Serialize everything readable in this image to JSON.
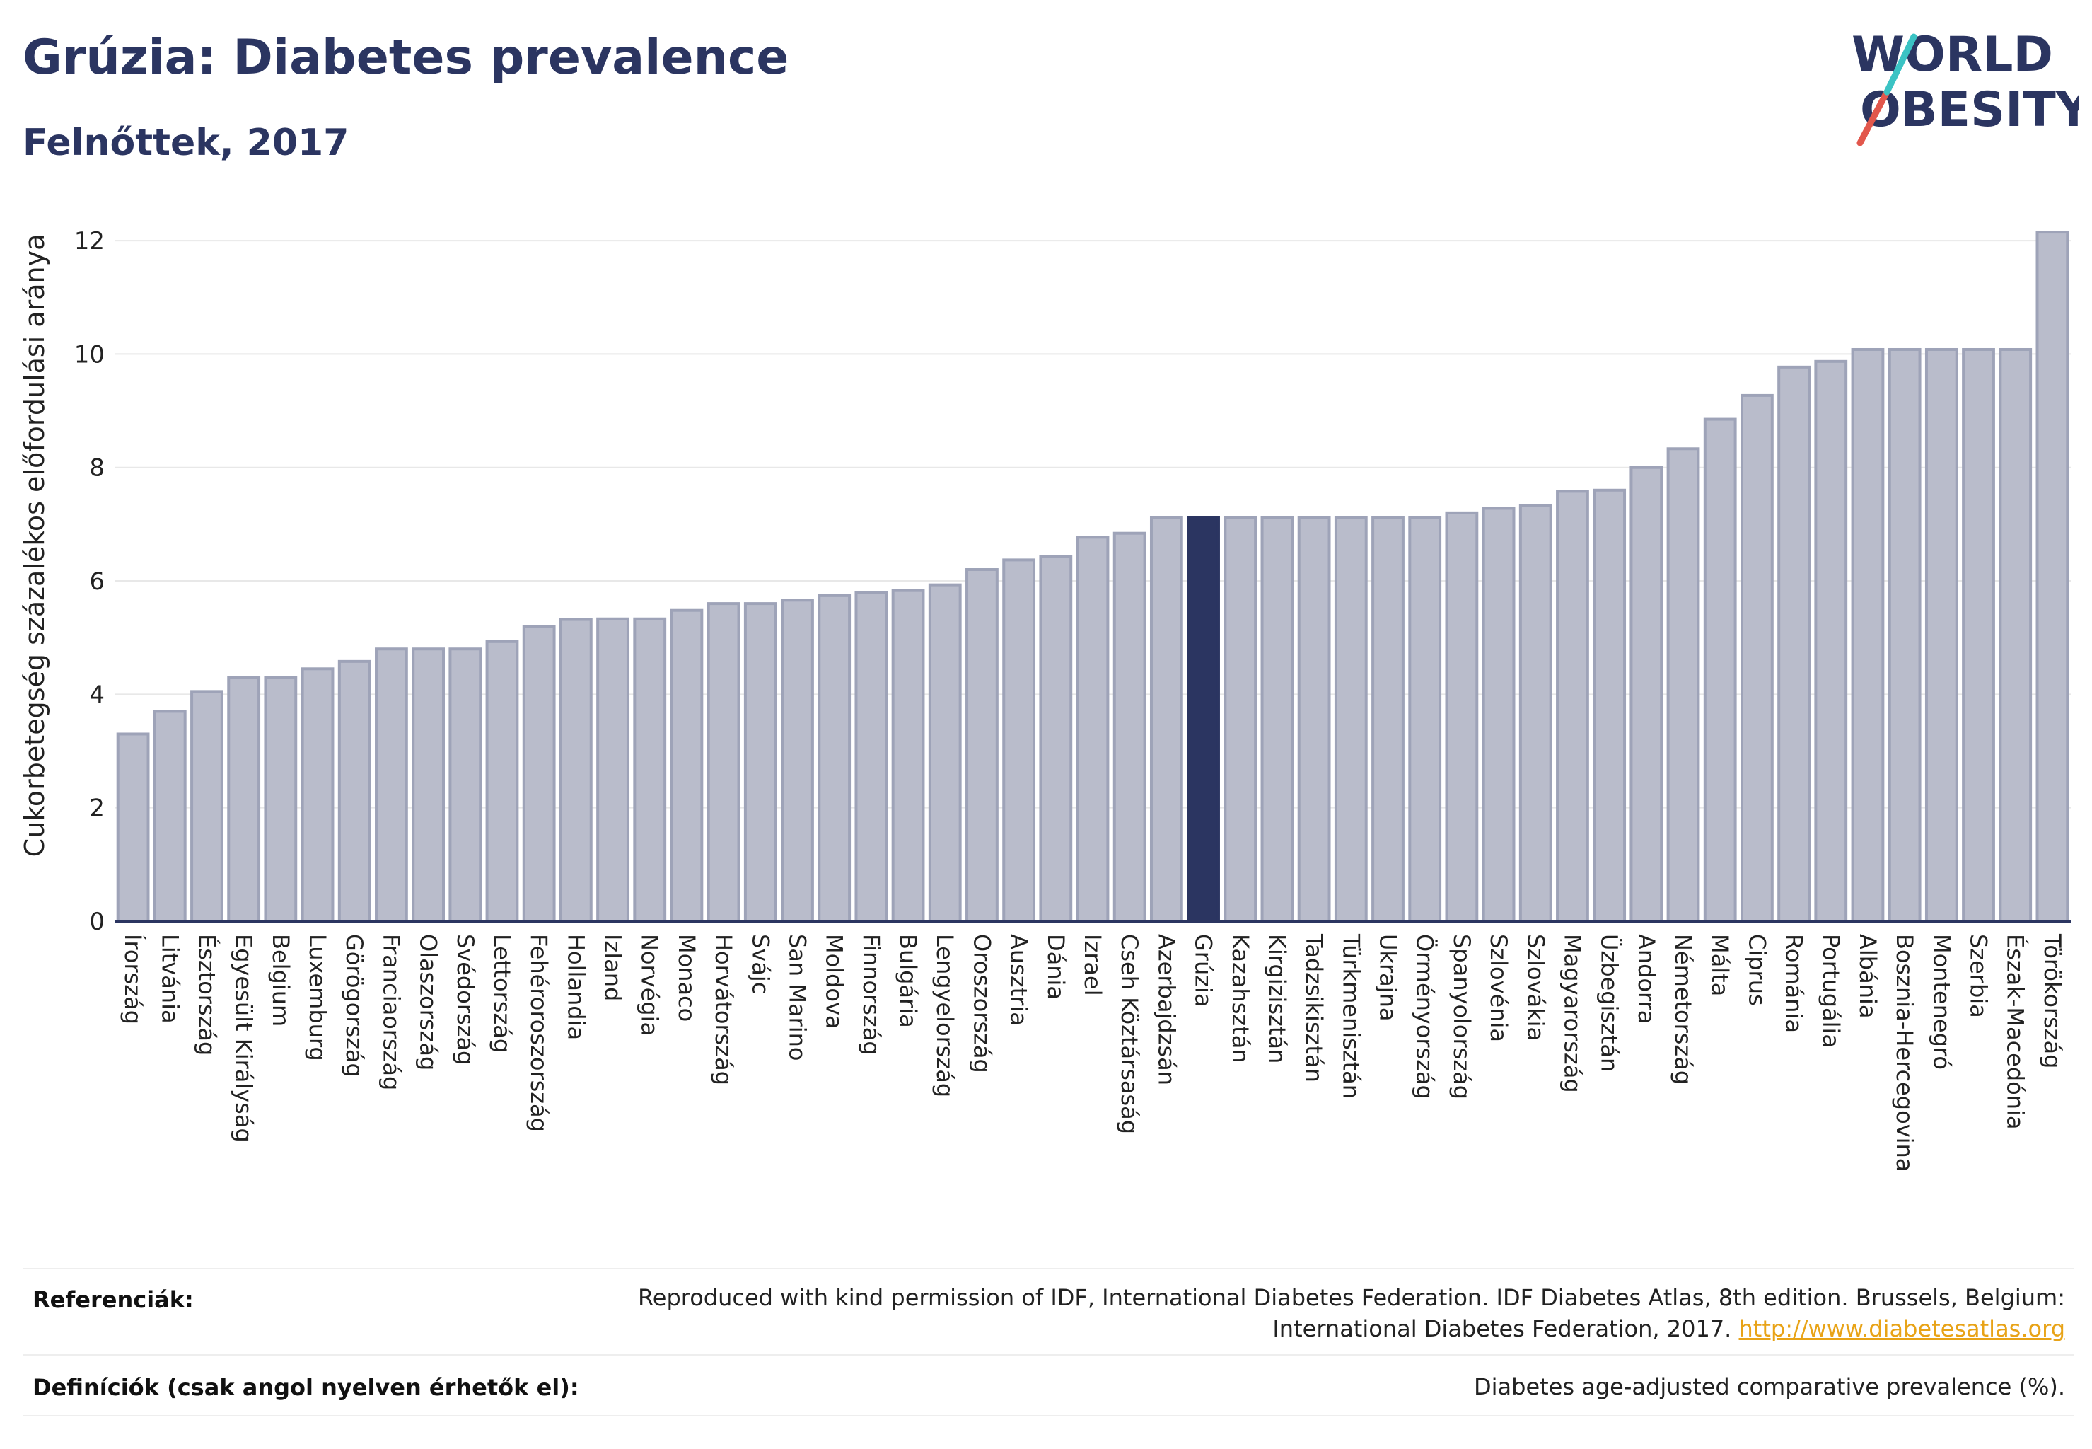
{
  "header": {
    "title": "Grúzia: Diabetes prevalence",
    "subtitle": "Felnőttek, 2017"
  },
  "logo": {
    "line1": "WORLD",
    "line2": "OBESITY",
    "text_color": "#2b3561",
    "slash_colors": [
      "#e2574c",
      "#3bc3c4"
    ]
  },
  "colors": {
    "bar_default": "#b9bccb",
    "bar_border": "#9ea3b8",
    "bar_highlight": "#2b3561",
    "grid": "#e8e8e8",
    "axis": "#2b3561"
  },
  "chart_data": {
    "type": "bar",
    "title": "Grúzia: Diabetes prevalence",
    "subtitle": "Felnőttek, 2017",
    "xlabel": "",
    "ylabel": "Cukorbetegség százalékos előfordulási aránya",
    "ylim": [
      0,
      12.5
    ],
    "yticks": [
      0,
      2,
      4,
      6,
      8,
      10,
      12
    ],
    "grid": true,
    "highlight": "Grúzia",
    "categories": [
      "Írország",
      "Litvánia",
      "Észtország",
      "Egyesült Királyság",
      "Belgium",
      "Luxemburg",
      "Görögország",
      "Franciaország",
      "Olaszország",
      "Svédország",
      "Lettország",
      "Fehéroroszország",
      "Hollandia",
      "Izland",
      "Norvégia",
      "Monaco",
      "Horvátország",
      "Svájc",
      "San Marino",
      "Moldova",
      "Finnország",
      "Bulgária",
      "Lengyelország",
      "Oroszország",
      "Ausztria",
      "Dánia",
      "Izrael",
      "Cseh Köztársaság",
      "Azerbajdzsán",
      "Grúzia",
      "Kazahsztán",
      "Kirgizisztán",
      "Tadzsikisztán",
      "Türkmenisztán",
      "Ukrajna",
      "Örményország",
      "Spanyolország",
      "Szlovénia",
      "Szlovákia",
      "Magyarország",
      "Üzbegisztán",
      "Andorra",
      "Németország",
      "Málta",
      "Ciprus",
      "Románia",
      "Portugália",
      "Albánia",
      "Bosznia-Hercegovina",
      "Montenegró",
      "Szerbia",
      "Észak-Macedónia",
      "Törökország"
    ],
    "values": [
      3.3,
      3.7,
      4.05,
      4.3,
      4.3,
      4.45,
      4.58,
      4.8,
      4.8,
      4.8,
      4.93,
      5.2,
      5.32,
      5.33,
      5.33,
      5.48,
      5.6,
      5.6,
      5.66,
      5.74,
      5.79,
      5.83,
      5.93,
      6.2,
      6.37,
      6.43,
      6.77,
      6.84,
      7.12,
      7.12,
      7.12,
      7.12,
      7.12,
      7.12,
      7.12,
      7.12,
      7.2,
      7.28,
      7.33,
      7.58,
      7.6,
      8.0,
      8.33,
      8.85,
      9.27,
      9.77,
      9.87,
      10.08,
      10.08,
      10.08,
      10.08,
      10.08,
      12.15
    ]
  },
  "footer": {
    "references_label": "Referenciák:",
    "references_line1": "Reproduced with kind permission of IDF, International Diabetes Federation. IDF Diabetes Atlas, 8th edition. Brussels, Belgium:",
    "references_line2": "International Diabetes Federation, 2017.",
    "references_link": "http://www.diabetesatlas.org",
    "definitions_label": "Definíciók (csak angol nyelven érhetők el):",
    "definitions_text": "Diabetes age-adjusted comparative prevalence (%)."
  }
}
